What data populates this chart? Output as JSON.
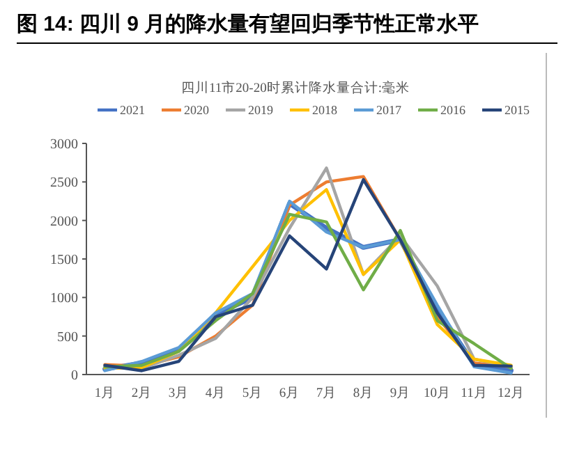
{
  "chart_data": {
    "type": "line",
    "title": "图 14:  四川 9 月的降水量有望回归季节性正常水平",
    "subtitle": "四川11市20-20时累计降水量合计:毫米",
    "categories": [
      "1月",
      "2月",
      "3月",
      "4月",
      "5月",
      "6月",
      "7月",
      "8月",
      "9月",
      "10月",
      "11月",
      "12月"
    ],
    "series": [
      {
        "name": "2021",
        "color": "#4472c4",
        "values": [
          70,
          150,
          320,
          780,
          1000,
          2220,
          1900,
          1650,
          1750,
          850,
          130,
          50
        ]
      },
      {
        "name": "2020",
        "color": "#ed7d31",
        "values": [
          130,
          110,
          230,
          500,
          900,
          2200,
          2500,
          2570,
          1750,
          750,
          150,
          100
        ]
      },
      {
        "name": "2019",
        "color": "#a5a5a5",
        "values": [
          100,
          80,
          250,
          470,
          1000,
          1900,
          2680,
          1300,
          1800,
          1150,
          200,
          100
        ]
      },
      {
        "name": "2018",
        "color": "#ffc000",
        "values": [
          80,
          90,
          300,
          800,
          1400,
          2000,
          2400,
          1300,
          1750,
          650,
          200,
          120
        ]
      },
      {
        "name": "2017",
        "color": "#5b9bd5",
        "values": [
          50,
          170,
          350,
          800,
          1050,
          2250,
          1850,
          1650,
          1750,
          900,
          100,
          20
        ]
      },
      {
        "name": "2016",
        "color": "#70ad47",
        "values": [
          100,
          120,
          300,
          700,
          1050,
          2080,
          1980,
          1100,
          1870,
          700,
          400,
          80
        ]
      },
      {
        "name": "2015",
        "color": "#264478",
        "values": [
          120,
          50,
          170,
          750,
          900,
          1800,
          1370,
          2530,
          1750,
          800,
          120,
          110
        ]
      }
    ],
    "ylim": [
      0,
      3000
    ],
    "yticks": [
      0,
      500,
      1000,
      1500,
      2000,
      2500,
      3000
    ],
    "grid": false,
    "legend": "top",
    "marker": "none",
    "line_style": "solid"
  }
}
